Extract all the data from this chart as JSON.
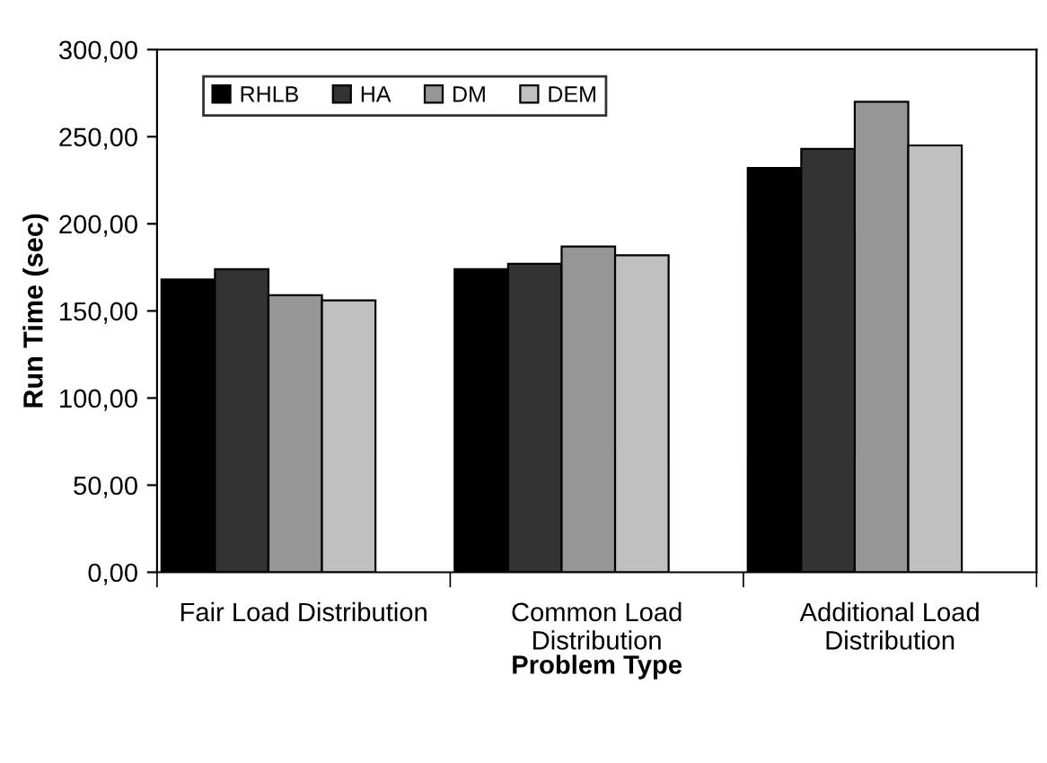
{
  "chart_data": {
    "type": "bar",
    "xlabel": "Problem Type",
    "ylabel": "Run Time (sec)",
    "categories": [
      "Fair Load Distribution",
      "Common Load\nDistribution",
      "Additional Load\nDistribution"
    ],
    "series": [
      {
        "name": "RHLB",
        "color": "#000000",
        "values": [
          168,
          174,
          232
        ]
      },
      {
        "name": "HA",
        "color": "#333333",
        "values": [
          174,
          177,
          243
        ]
      },
      {
        "name": "DM",
        "color": "#969696",
        "values": [
          159,
          187,
          270
        ]
      },
      {
        "name": "DEM",
        "color": "#c0c0c0",
        "values": [
          156,
          182,
          245
        ]
      }
    ],
    "ylim": [
      0,
      300
    ],
    "yticks": [
      {
        "value": 0,
        "label": "0,00"
      },
      {
        "value": 50,
        "label": "50,00"
      },
      {
        "value": 100,
        "label": "100,00"
      },
      {
        "value": 150,
        "label": "150,00"
      },
      {
        "value": 200,
        "label": "200,00"
      },
      {
        "value": 250,
        "label": "250,00"
      },
      {
        "value": 300,
        "label": "300,00"
      }
    ],
    "grid": false,
    "legend": "top left"
  }
}
